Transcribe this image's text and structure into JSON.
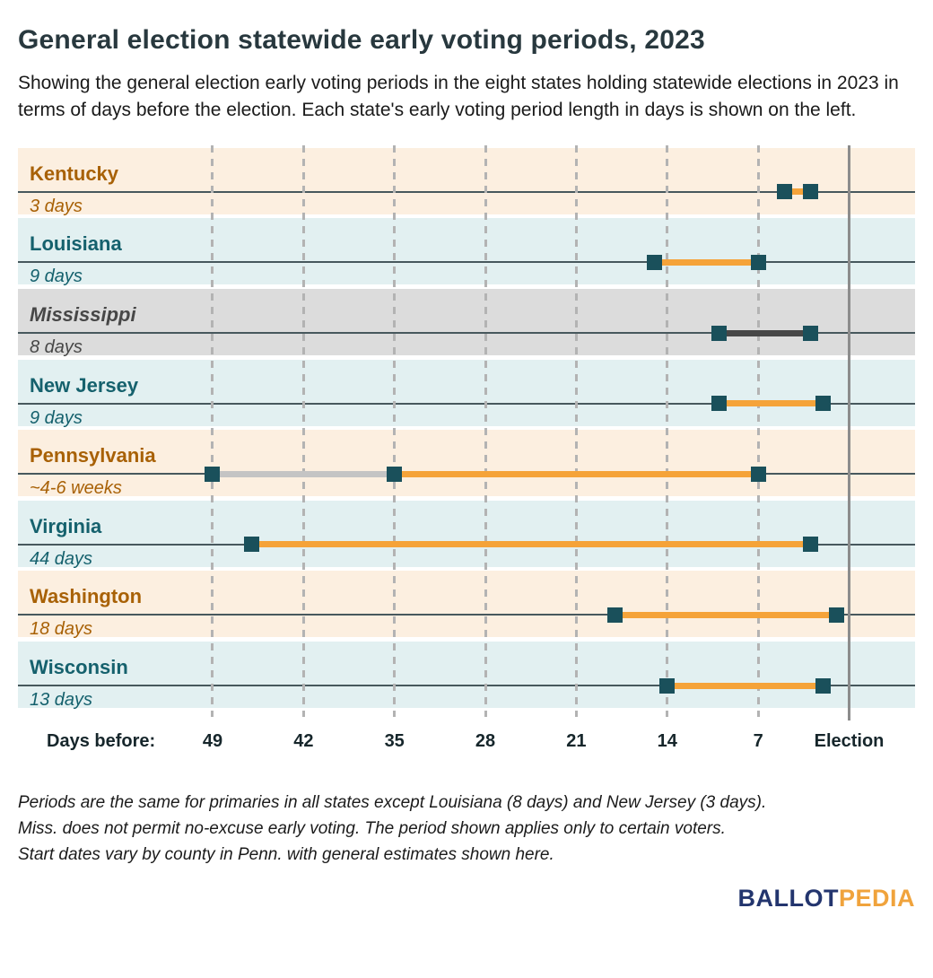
{
  "title": "General election statewide early voting periods, 2023",
  "subtitle": "Showing the general election early voting periods in the eight states holding statewide elections in 2023 in terms of days before the election. Each state's early voting period length in days is shown on the left.",
  "footnote_lines": [
    "Periods are the same for primaries in all states except Louisiana (8 days) and New Jersey (3 days).",
    "Miss. does not permit no-excuse early voting. The period shown applies only to certain voters.",
    "Start dates vary by county in Penn. with general estimates shown here."
  ],
  "logo": {
    "ballot": "BALLOT",
    "pedia": "PEDIA"
  },
  "colors": {
    "title_color": "#28383E",
    "orange_bar": "#F5A339",
    "teal_square": "#1A505B",
    "dark_bar": "#474747",
    "gray_bar": "#C4C4C4",
    "row_orange_bg": "#FCEFE0",
    "row_teal_bg": "#E2F0F1",
    "row_gray_bg": "#DCDCDC",
    "label_orange": "#A86106",
    "label_teal": "#15616D",
    "label_gray": "#474747",
    "logo_blue": "#23356E",
    "logo_orange": "#F0A33C"
  },
  "chart_data": {
    "type": "gantt-timeline",
    "title": "General election statewide early voting periods, 2023",
    "x_axis": {
      "label": "Days before:",
      "ticks": [
        49,
        42,
        35,
        28,
        21,
        14,
        7
      ],
      "end_label": "Election",
      "unit": "days before election",
      "range_days": [
        49,
        0
      ],
      "gridlines": "dashed vertical at each tick, solid line at Election"
    },
    "rows": [
      {
        "state": "Kentucky",
        "period_label": "3 days",
        "theme": "orange",
        "segments": [
          {
            "from_day": 5,
            "to_day": 3,
            "style": "orange"
          }
        ]
      },
      {
        "state": "Louisiana",
        "period_label": "9 days",
        "theme": "teal",
        "segments": [
          {
            "from_day": 15,
            "to_day": 7,
            "style": "orange"
          }
        ]
      },
      {
        "state": "Mississippi",
        "period_label": "8 days",
        "theme": "gray",
        "segments": [
          {
            "from_day": 10,
            "to_day": 3,
            "style": "dark"
          }
        ]
      },
      {
        "state": "New Jersey",
        "period_label": "9 days",
        "theme": "teal",
        "segments": [
          {
            "from_day": 10,
            "to_day": 2,
            "style": "orange"
          }
        ]
      },
      {
        "state": "Pennsylvania",
        "period_label": "~4-6 weeks",
        "theme": "orange",
        "segments": [
          {
            "from_day": 49,
            "to_day": 35,
            "style": "gray"
          },
          {
            "from_day": 35,
            "to_day": 7,
            "style": "orange"
          }
        ]
      },
      {
        "state": "Virginia",
        "period_label": "44 days",
        "theme": "teal",
        "segments": [
          {
            "from_day": 46,
            "to_day": 3,
            "style": "orange"
          }
        ]
      },
      {
        "state": "Washington",
        "period_label": "18 days",
        "theme": "orange",
        "segments": [
          {
            "from_day": 18,
            "to_day": 1,
            "style": "orange"
          }
        ]
      },
      {
        "state": "Wisconsin",
        "period_label": "13 days",
        "theme": "teal",
        "segments": [
          {
            "from_day": 14,
            "to_day": 2,
            "style": "orange"
          }
        ]
      }
    ]
  }
}
